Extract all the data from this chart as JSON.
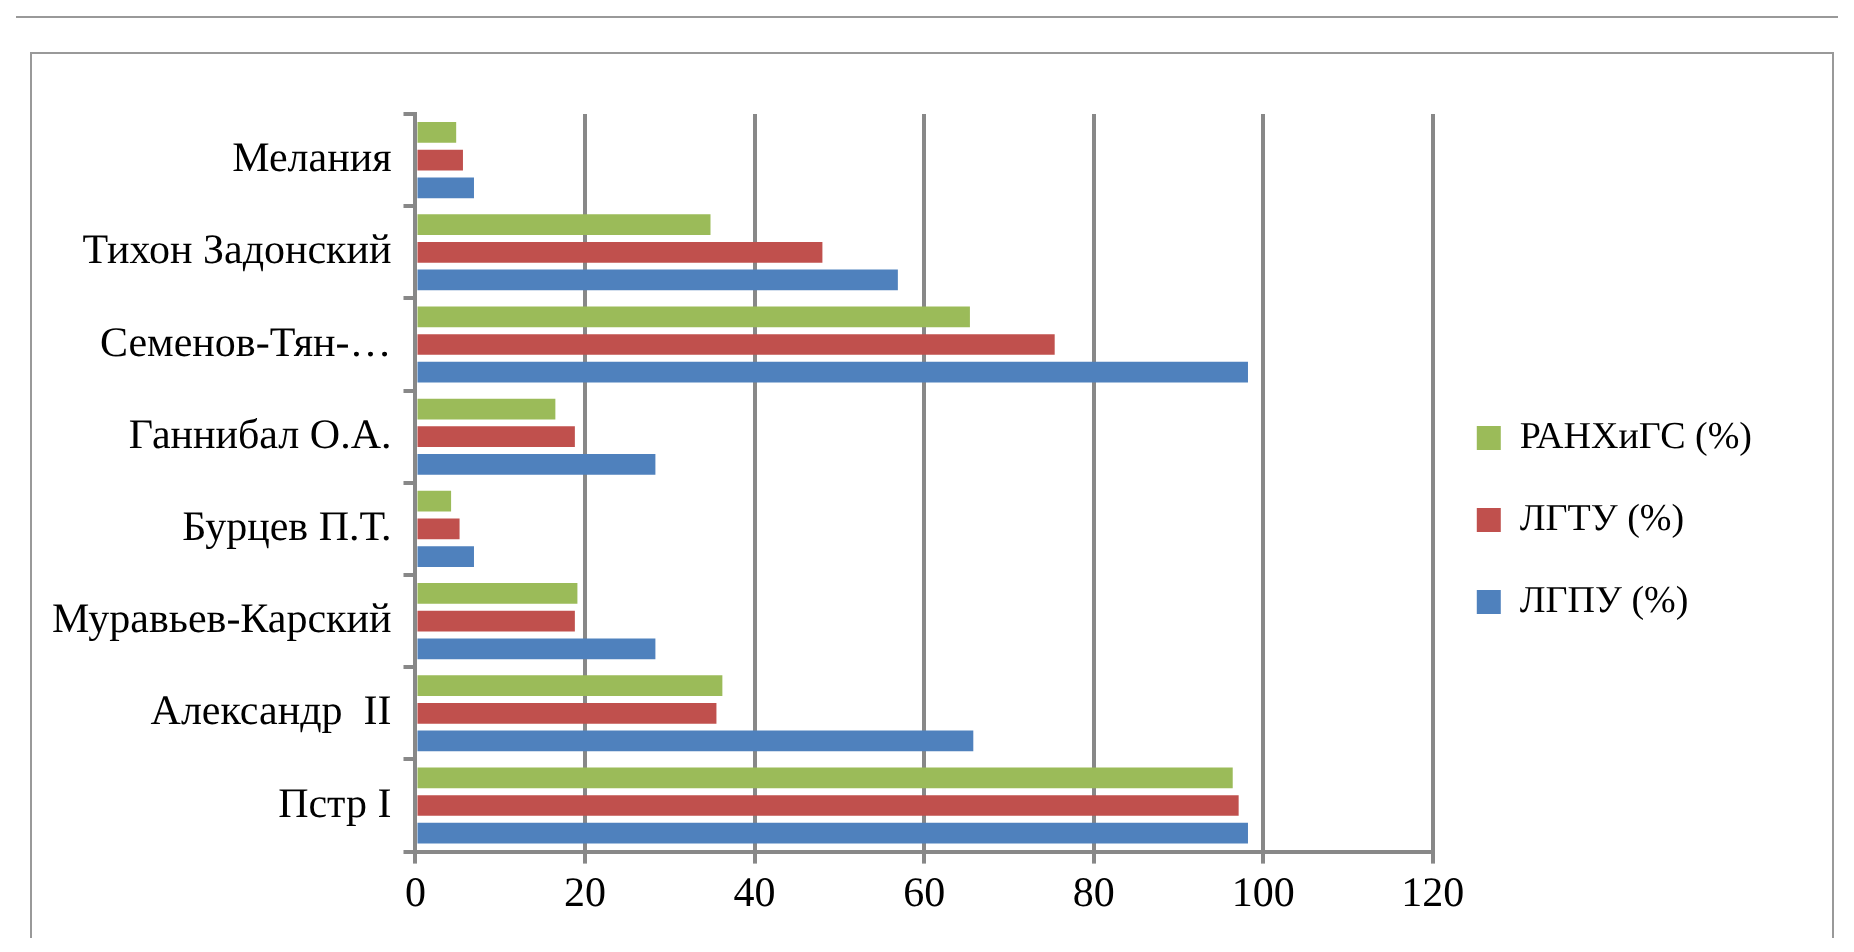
{
  "chart_data": {
    "type": "bar",
    "orientation": "horizontal",
    "categories": [
      "Мелания",
      "Тихон Задонский",
      "Семенов-Тян-…",
      "Ганнибал О.А.",
      "Бурцев П.Т.",
      "Муравьев-Карский",
      "Александр  II",
      "Пстр I"
    ],
    "series": [
      {
        "name": "РАНХиГС (%)",
        "color": "#9bbb59",
        "values": [
          4.8,
          34.8,
          65.4,
          16.5,
          4.2,
          19.1,
          36.2,
          96.4
        ]
      },
      {
        "name": "ЛГТУ (%)",
        "color": "#c0504d",
        "values": [
          5.6,
          48,
          75.4,
          18.8,
          5.2,
          18.8,
          35.5,
          97.1
        ]
      },
      {
        "name": "ЛГПУ (%)",
        "color": "#4f81bd",
        "values": [
          6.9,
          56.9,
          98.2,
          28.3,
          6.9,
          28.3,
          65.8,
          98.2
        ]
      }
    ],
    "xlim": [
      0,
      120
    ],
    "xticks": [
      0,
      20,
      40,
      60,
      80,
      100,
      120
    ],
    "grid": "x",
    "legend": "right"
  }
}
